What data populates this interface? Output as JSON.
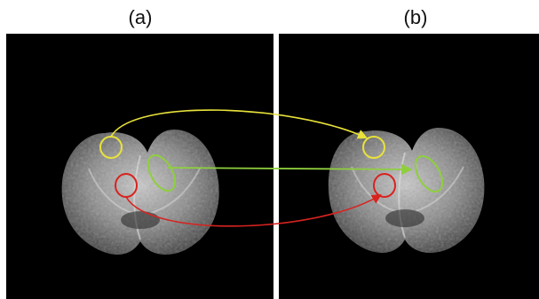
{
  "figure": {
    "panel_a_label": "(a)",
    "panel_b_label": "(b)"
  },
  "colors": {
    "background": "#000000",
    "yellow": "#e8e23a",
    "green": "#8fcf3e",
    "red": "#d8231f"
  },
  "annotations": [
    {
      "name": "yellow-correspondence",
      "color": "yellow"
    },
    {
      "name": "green-correspondence",
      "color": "green"
    },
    {
      "name": "red-correspondence",
      "color": "red"
    }
  ]
}
